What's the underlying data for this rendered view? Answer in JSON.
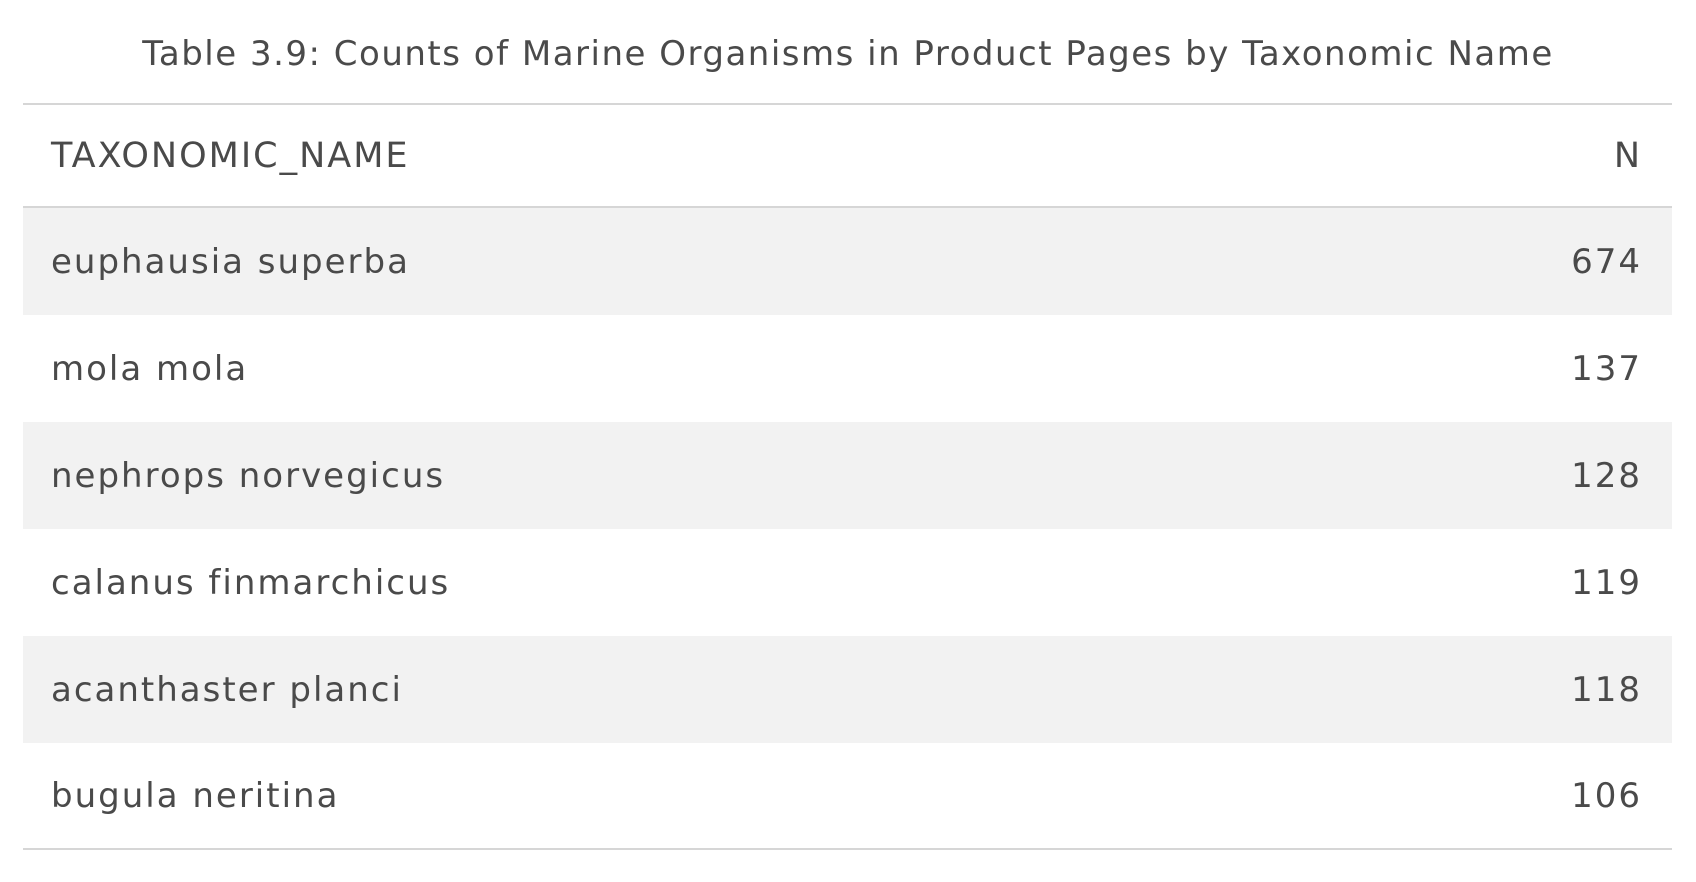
{
  "caption": "Table 3.9: Counts of Marine Organisms in Product Pages by Taxonomic Name",
  "columns": [
    "TAXONOMIC_NAME",
    "N"
  ],
  "rows": [
    {
      "name": "euphausia superba",
      "n": "674"
    },
    {
      "name": "mola mola",
      "n": "137"
    },
    {
      "name": "nephrops norvegicus",
      "n": "128"
    },
    {
      "name": "calanus finmarchicus",
      "n": "119"
    },
    {
      "name": "acanthaster planci",
      "n": "118"
    },
    {
      "name": "bugula neritina",
      "n": "106"
    }
  ],
  "colors": {
    "text": "#4a4a4a",
    "stripe": "#f2f2f2",
    "rule": "#d6d6d6"
  }
}
